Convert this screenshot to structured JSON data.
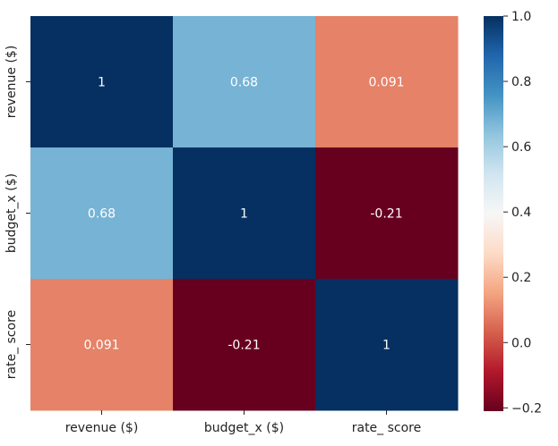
{
  "chart_data": {
    "type": "heatmap",
    "rows": [
      "revenue ($)",
      "budget_x ($)",
      "rate_ score"
    ],
    "cols": [
      "revenue ($)",
      "budget_x ($)",
      "rate_ score"
    ],
    "values": [
      [
        1,
        0.68,
        0.091
      ],
      [
        0.68,
        1,
        -0.21
      ],
      [
        0.091,
        -0.21,
        1
      ]
    ],
    "annotations": [
      [
        "1",
        "0.68",
        "0.091"
      ],
      [
        "0.68",
        "1",
        "-0.21"
      ],
      [
        "0.091",
        "-0.21",
        "1"
      ]
    ],
    "colormap": "RdBu",
    "vmin": -0.21,
    "vmax": 1.0,
    "colorbar": {
      "ticks": [
        1.0,
        0.8,
        0.6,
        0.4,
        0.2,
        0.0,
        -0.2
      ],
      "tick_labels": [
        "1.0",
        "0.8",
        "0.6",
        "0.4",
        "0.2",
        "0.0",
        "−0.2"
      ]
    }
  }
}
